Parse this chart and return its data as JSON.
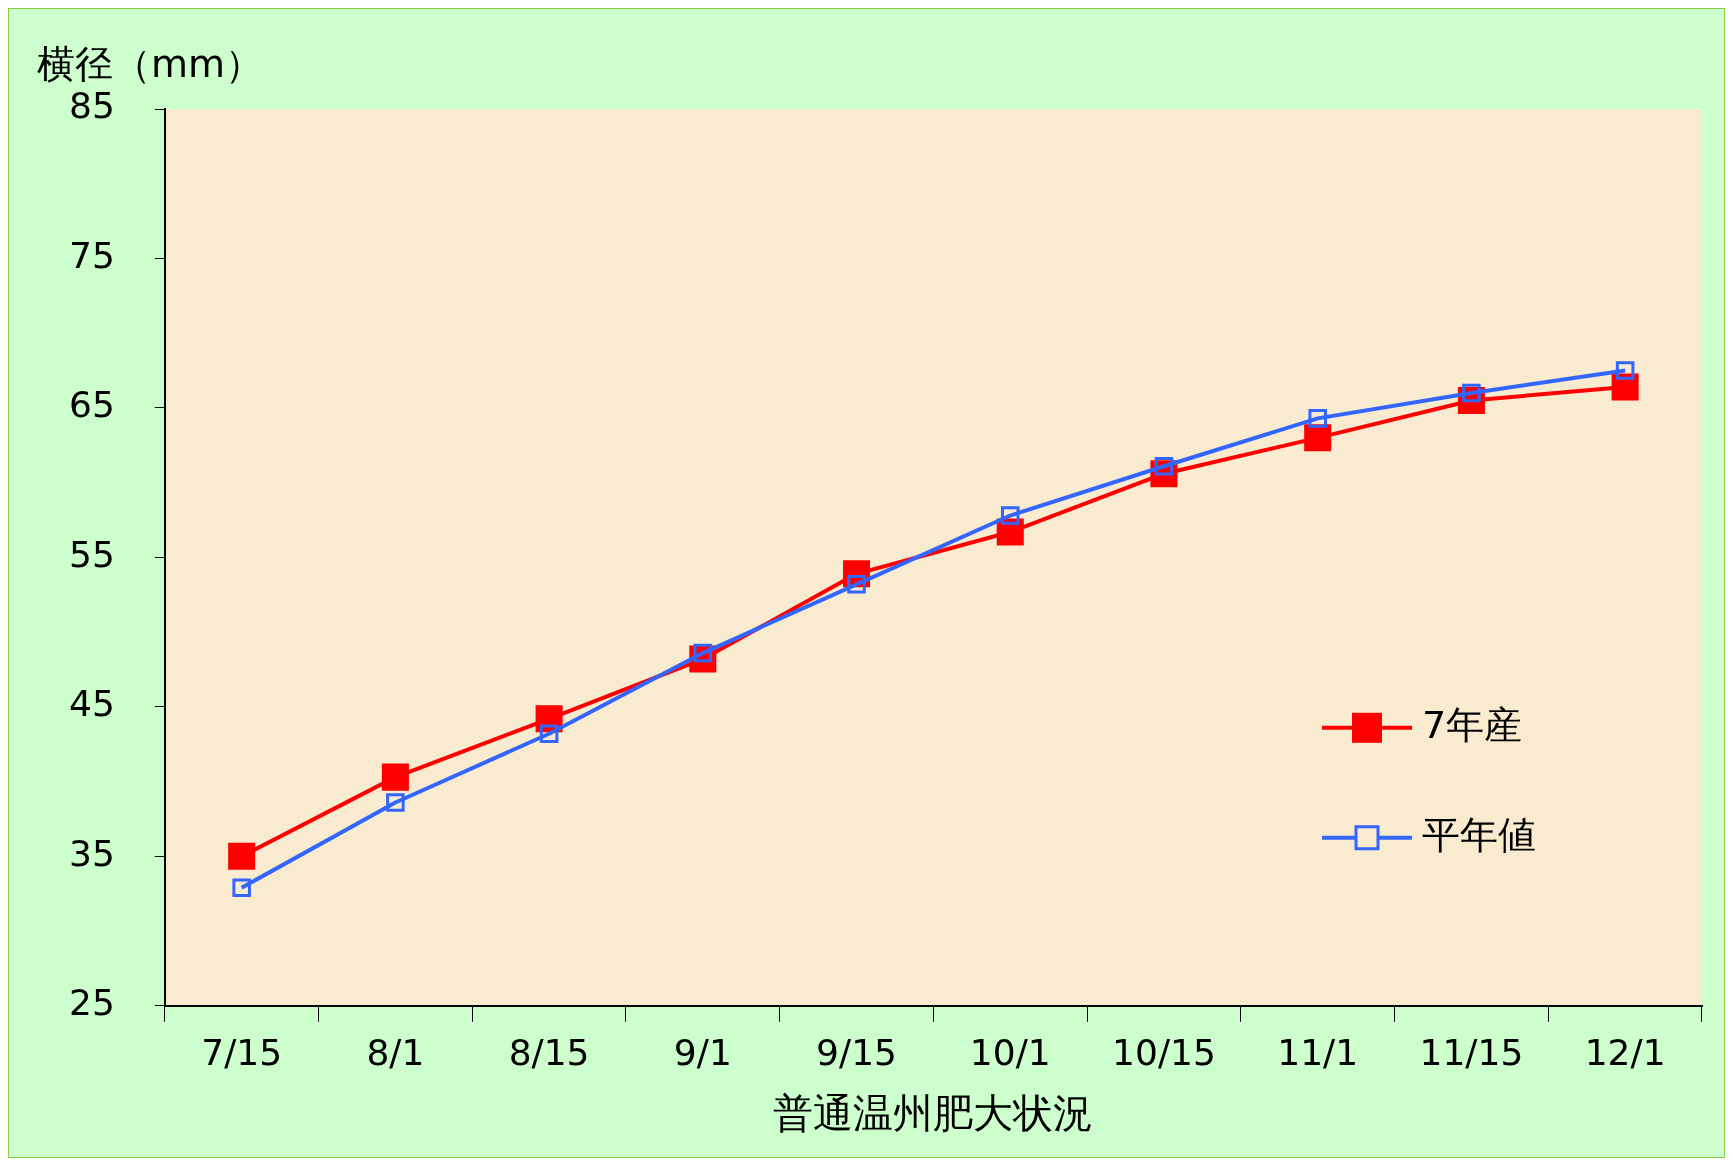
{
  "chart_data": {
    "type": "line",
    "xlabel": "普通温州肥大状況",
    "ylabel": "横径（mm）",
    "categories": [
      "7/15",
      "8/1",
      "8/15",
      "9/1",
      "9/15",
      "10/1",
      "10/15",
      "11/1",
      "11/15",
      "12/1"
    ],
    "series": [
      {
        "name": "7年産",
        "color": "#ff0000",
        "values": [
          35.0,
          40.3,
          44.2,
          48.2,
          53.9,
          56.7,
          60.6,
          63.0,
          65.5,
          66.4
        ]
      },
      {
        "name": "平年値",
        "color": "#3366ff",
        "values": [
          32.9,
          38.6,
          43.2,
          48.6,
          53.2,
          57.8,
          61.1,
          64.3,
          66.0,
          67.5
        ]
      }
    ],
    "ylim": [
      25,
      85
    ],
    "yticks": [
      25,
      35,
      45,
      55,
      65,
      75,
      85
    ],
    "grid": false,
    "legend": "right",
    "marker": "square",
    "line_style": "solid"
  }
}
